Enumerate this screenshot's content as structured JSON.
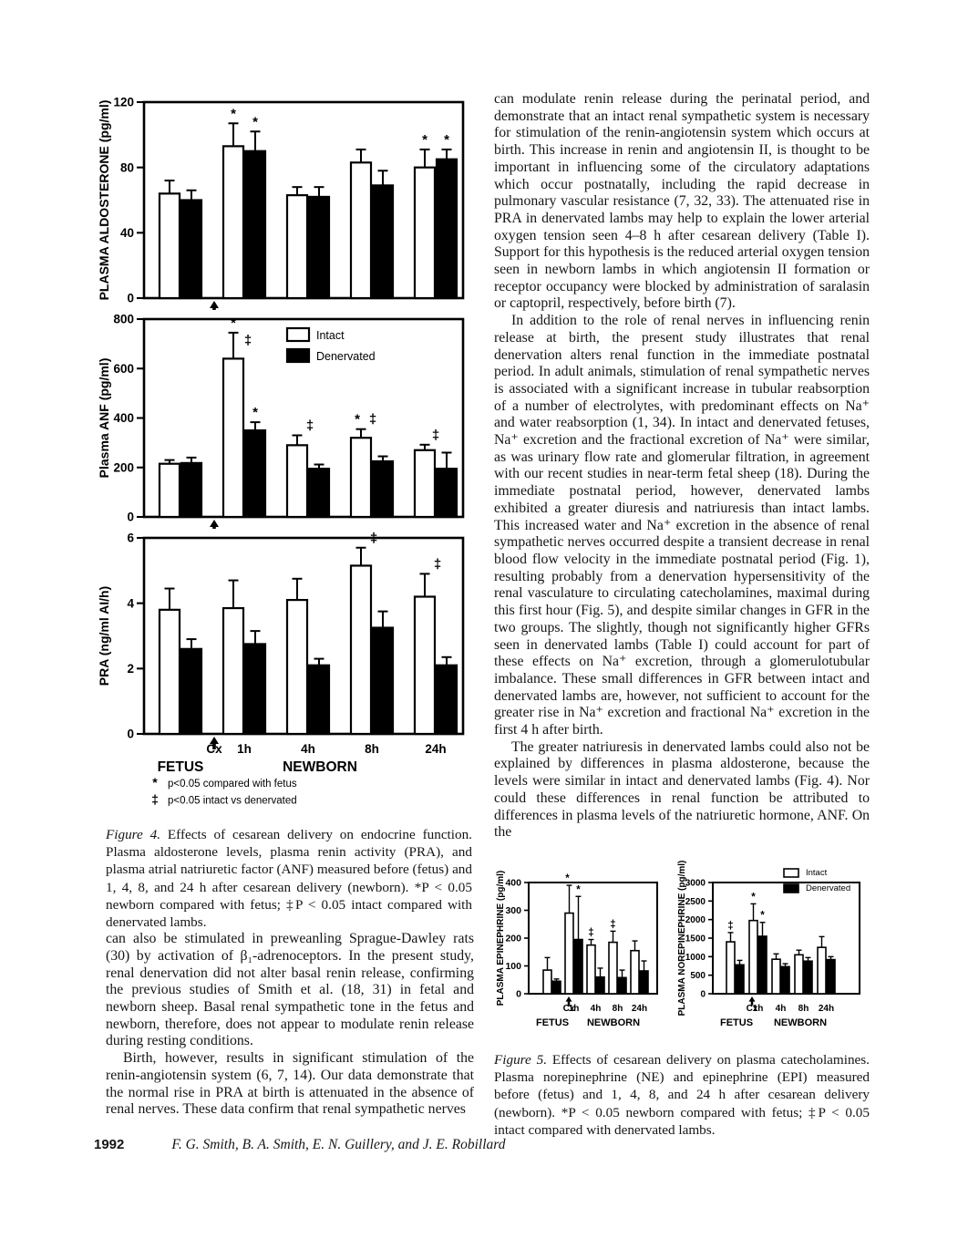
{
  "page": {
    "number": "1992",
    "running_authors": "F. G. Smith, B. A. Smith, E. N. Guillery, and J. E. Robillard"
  },
  "left_column": {
    "figure4": {
      "caption_label": "Figure 4.",
      "caption_text": " Effects of cesarean delivery on endocrine function. Plasma aldosterone levels, plasma renin activity (PRA), and plasma atrial natriuretic factor (ANF) measured before (fetus) and 1, 4, 8, and 24 h after cesarean delivery (newborn). *P < 0.05 newborn compared with fetus; ‡P < 0.05 intact compared with denervated lambs."
    },
    "paragraphs": [
      "can also be stimulated in preweanling Sprague-Dawley rats (30) by activation of β₁-adrenoceptors. In the present study, renal denervation did not alter basal renin release, confirming the previous studies of Smith et al. (18, 31) in fetal and newborn sheep. Basal renal sympathetic tone in the fetus and newborn, therefore, does not appear to modulate renin release during resting conditions.",
      "Birth, however, results in significant stimulation of the renin-angiotensin system (6, 7, 14). Our data demonstrate that the normal rise in PRA at birth is attenuated in the absence of renal nerves. These data confirm that renal sympathetic nerves"
    ]
  },
  "right_column": {
    "paragraphs": [
      "can modulate renin release during the perinatal period, and demonstrate that an intact renal sympathetic system is necessary for stimulation of the renin-angiotensin system which occurs at birth. This increase in renin and angiotensin II, is thought to be important in influencing some of the circulatory adaptations which occur postnatally, including the rapid decrease in pulmonary vascular resistance (7, 32, 33). The attenuated rise in PRA in denervated lambs may help to explain the lower arterial oxygen tension seen 4–8 h after cesarean delivery (Table I). Support for this hypothesis is the reduced arterial oxygen tension seen in newborn lambs in which angiotensin II formation or receptor occupancy were blocked by administration of saralasin or captopril, respectively, before birth (7).",
      "In addition to the role of renal nerves in influencing renin release at birth, the present study illustrates that renal denervation alters renal function in the immediate postnatal period. In adult animals, stimulation of renal sympathetic nerves is associated with a significant increase in tubular reabsorption of a number of electrolytes, with predominant effects on Na⁺ and water reabsorption (1, 34). In intact and denervated fetuses, Na⁺ excretion and the fractional excretion of Na⁺ were similar, as was urinary flow rate and glomerular filtration, in agreement with our recent studies in near-term fetal sheep (18). During the immediate postnatal period, however, denervated lambs exhibited a greater diuresis and natriuresis than intact lambs. This increased water and Na⁺ excretion in the absence of renal sympathetic nerves occurred despite a transient decrease in renal blood flow velocity in the immediate postnatal period (Fig. 1), resulting probably from a denervation hypersensitivity of the renal vasculature to circulating catecholamines, maximal during this first hour (Fig. 5), and despite similar changes in GFR in the two groups. The slightly, though not significantly higher GFRs seen in denervated lambs (Table I) could account for part of these effects on Na⁺ excretion, through a glomerulotubular imbalance. These small differences in GFR between intact and denervated lambs are, however, not sufficient to account for the greater rise in Na⁺ excretion and fractional Na⁺ excretion in the first 4 h after birth.",
      "The greater natriuresis in denervated lambs could also not be explained by differences in plasma aldosterone, because the levels were similar in intact and denervated lambs (Fig. 4). Nor could these differences in renal function be attributed to differences in plasma levels of the natriuretic hormone, ANF. On the"
    ],
    "figure5": {
      "caption_label": "Figure 5.",
      "caption_text": " Effects of cesarean delivery on plasma catecholamines. Plasma norepinephrine (NE) and epinephrine (EPI) measured before (fetus) and 1, 4, 8, and 24 h after cesarean delivery (newborn). *P < 0.05 newborn compared with fetus; ‡P < 0.05 intact compared with denervated lambs."
    }
  },
  "chart_data": [
    {
      "id": "aldosterone",
      "type": "bar",
      "title": "",
      "ylabel": "PLASMA ALDOSTERONE (pg/ml)",
      "ylim": [
        0,
        120
      ],
      "yticks": [
        0,
        40,
        80,
        120
      ],
      "categories": [
        "Fetus (Cx)",
        "1h",
        "4h",
        "8h",
        "24h"
      ],
      "series": [
        {
          "name": "Intact",
          "fill": "#ffffff",
          "values": [
            64,
            93,
            63,
            83,
            80
          ],
          "errors": [
            8,
            14,
            5,
            8,
            11
          ]
        },
        {
          "name": "Denervated",
          "fill": "#000000",
          "values": [
            60,
            90,
            62,
            69,
            85
          ],
          "errors": [
            6,
            12,
            6,
            9,
            6
          ]
        }
      ],
      "annotations": [
        {
          "g": 1,
          "s": "i",
          "sym": "*"
        },
        {
          "g": 1,
          "s": "d",
          "sym": "*"
        },
        {
          "g": 4,
          "s": "i",
          "sym": "*"
        },
        {
          "g": 4,
          "s": "d",
          "sym": "*"
        }
      ],
      "arrow": true
    },
    {
      "id": "anf",
      "type": "bar",
      "title": "",
      "ylabel": "Plasma ANF (pg/ml)",
      "ylim": [
        0,
        800
      ],
      "yticks": [
        0,
        200,
        400,
        600,
        800
      ],
      "categories": [
        "Fetus (Cx)",
        "1h",
        "4h",
        "8h",
        "24h"
      ],
      "series": [
        {
          "name": "Intact",
          "fill": "#ffffff",
          "values": [
            215,
            640,
            290,
            320,
            270
          ],
          "errors": [
            15,
            105,
            40,
            35,
            22
          ]
        },
        {
          "name": "Denervated",
          "fill": "#000000",
          "values": [
            218,
            350,
            195,
            225,
            195
          ],
          "errors": [
            22,
            33,
            17,
            20,
            65
          ]
        }
      ],
      "legend": {
        "labels": [
          "Intact",
          "Denervated"
        ],
        "position": "inside-top-right"
      },
      "annotations": [
        {
          "g": 1,
          "s": "i",
          "sym": "*"
        },
        {
          "g": 1,
          "s": "i",
          "sym": "‡",
          "dx": 16,
          "dy": -13
        },
        {
          "g": 1,
          "s": "d",
          "sym": "*"
        },
        {
          "g": 2,
          "s": "i",
          "sym": "‡",
          "dx": 14
        },
        {
          "g": 3,
          "s": "i",
          "sym": "*",
          "dx": -4
        },
        {
          "g": 3,
          "s": "i",
          "sym": "‡",
          "dx": 13
        },
        {
          "g": 4,
          "s": "mid",
          "sym": "‡"
        }
      ],
      "arrow": true
    },
    {
      "id": "pra",
      "type": "bar",
      "title": "",
      "ylabel": "PRA (ng/ml AI/h)",
      "ylim": [
        0,
        6
      ],
      "yticks": [
        0,
        2,
        4,
        6
      ],
      "categories": [
        "Fetus (Cx)",
        "1h",
        "4h",
        "8h",
        "24h"
      ],
      "series": [
        {
          "name": "Intact",
          "fill": "#ffffff",
          "values": [
            3.8,
            3.85,
            4.1,
            5.15,
            4.2
          ],
          "errors": [
            0.65,
            0.85,
            0.65,
            0.55,
            0.7
          ]
        },
        {
          "name": "Denervated",
          "fill": "#000000",
          "values": [
            2.6,
            2.75,
            2.1,
            3.25,
            2.1
          ],
          "errors": [
            0.3,
            0.4,
            0.2,
            0.5,
            0.25
          ]
        }
      ],
      "annotations": [
        {
          "g": 3,
          "s": "i",
          "sym": "‡",
          "dx": 14
        },
        {
          "g": 4,
          "s": "i",
          "sym": "‡",
          "dx": 14
        }
      ],
      "arrow": true,
      "xlabels": [
        "Cx",
        "1h",
        "4h",
        "8h",
        "24h"
      ],
      "group_labels": [
        "FETUS",
        "NEWBORN"
      ],
      "footnotes": [
        {
          "sym": "*",
          "text": "p<0.05 compared with fetus"
        },
        {
          "sym": "‡",
          "text": "p<0.05 intact vs denervated"
        }
      ]
    },
    {
      "id": "epinephrine",
      "type": "bar",
      "title": "",
      "ylabel": "PLASMA EPINEPHRINE (pg/ml)",
      "ylim": [
        0,
        400
      ],
      "yticks": [
        0,
        100,
        200,
        300,
        400
      ],
      "categories": [
        "Fetus (Cx)",
        "1h",
        "4h",
        "8h",
        "24h"
      ],
      "series": [
        {
          "name": "Intact",
          "fill": "#ffffff",
          "values": [
            85,
            290,
            175,
            185,
            155
          ],
          "errors": [
            45,
            100,
            20,
            40,
            35
          ]
        },
        {
          "name": "Denervated",
          "fill": "#000000",
          "values": [
            45,
            195,
            60,
            58,
            82
          ],
          "errors": [
            8,
            155,
            32,
            27,
            36
          ]
        }
      ],
      "annotations": [
        {
          "g": 1,
          "s": "i",
          "sym": "*",
          "dx": -2
        },
        {
          "g": 1,
          "s": "d",
          "sym": "*"
        },
        {
          "g": 2,
          "s": "i",
          "sym": "‡"
        },
        {
          "g": 3,
          "s": "i",
          "sym": "‡"
        }
      ],
      "arrow": true,
      "xlabels": [
        "Cx",
        "1h",
        "4h",
        "8h",
        "24h"
      ],
      "group_labels": [
        "FETUS",
        "NEWBORN"
      ]
    },
    {
      "id": "norepinephrine",
      "type": "bar",
      "title": "",
      "ylabel": "PLASMA NOREPINEPHRINE (pg/ml)",
      "ylim": [
        0,
        3000
      ],
      "yticks": [
        0,
        500,
        1000,
        1500,
        2000,
        2500,
        3000
      ],
      "categories": [
        "Fetus (Cx)",
        "1h",
        "4h",
        "8h",
        "24h"
      ],
      "series": [
        {
          "name": "Intact",
          "fill": "#ffffff",
          "values": [
            1400,
            1975,
            930,
            1050,
            1250
          ],
          "errors": [
            250,
            450,
            145,
            125,
            290
          ]
        },
        {
          "name": "Denervated",
          "fill": "#000000",
          "values": [
            780,
            1550,
            730,
            880,
            920
          ],
          "errors": [
            120,
            375,
            80,
            95,
            80
          ]
        }
      ],
      "legend": {
        "labels": [
          "Intact",
          "Denervated"
        ],
        "position": "inside-top-right"
      },
      "annotations": [
        {
          "g": 0,
          "s": "i",
          "sym": "‡"
        },
        {
          "g": 1,
          "s": "i",
          "sym": "*"
        },
        {
          "g": 1,
          "s": "d",
          "sym": "*"
        }
      ],
      "arrow": true,
      "xlabels": [
        "Cx",
        "1h",
        "4h",
        "8h",
        "24h"
      ],
      "group_labels": [
        "FETUS",
        "NEWBORN"
      ]
    }
  ]
}
